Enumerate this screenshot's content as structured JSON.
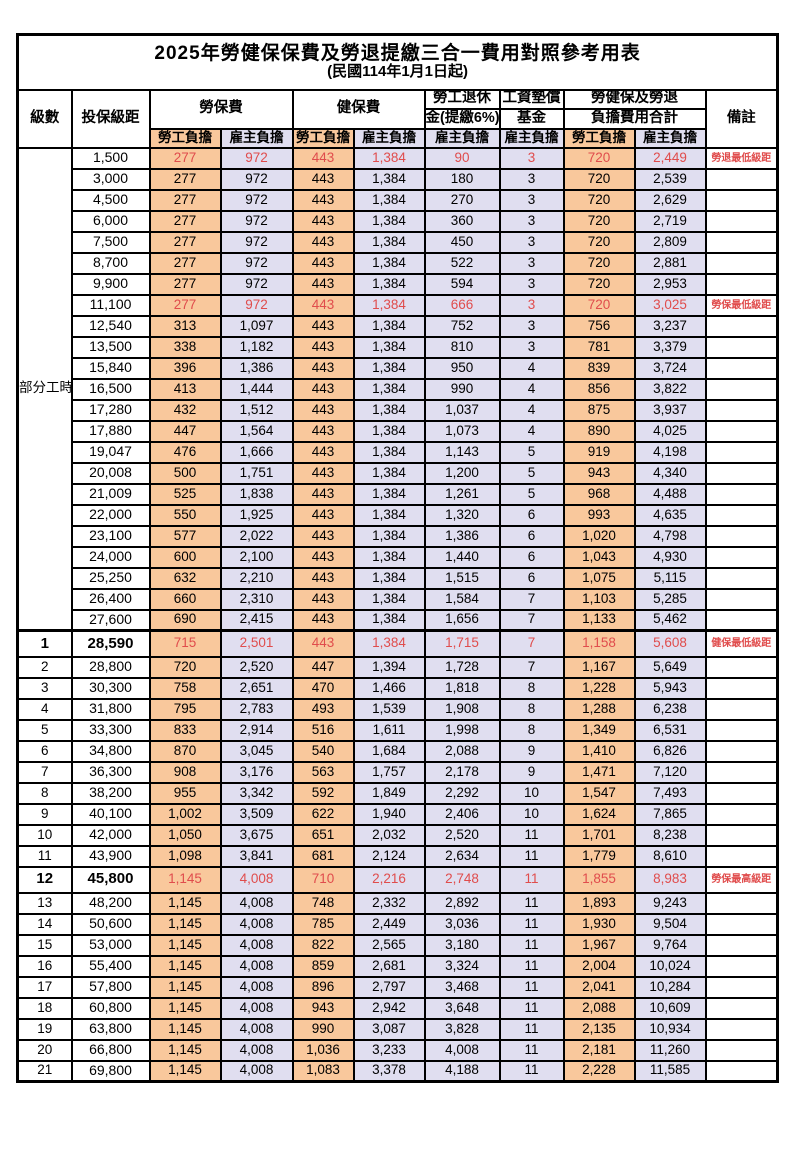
{
  "title": "2025年勞健保保費及勞退提繳三合一費用對照參考用表",
  "subtitle": "(民國114年1月1日起)",
  "colors": {
    "employee_bg": "#F9C89C",
    "employer_bg": "#E0DEF0",
    "highlight_text": "#E04C4C",
    "border": "#000000"
  },
  "header": {
    "level": "級數",
    "bracket": "投保級距",
    "labor_ins": "勞保費",
    "health_ins": "健保費",
    "pension_line1": "勞工退休",
    "pension_line2": "金(提繳6%)",
    "wage_fund_line1": "工資墊償",
    "wage_fund_line2": "基金",
    "total_line1": "勞健保及勞退",
    "total_line2": "負擔費用合計",
    "remark": "備註",
    "employee": "勞工負擔",
    "employer": "雇主負擔"
  },
  "part_time_label": "部分工時",
  "part_time_rowspan": 23,
  "rows": [
    {
      "level": null,
      "bracket": "1,500",
      "li_emp": "277",
      "li_er": "972",
      "hi_emp": "443",
      "hi_er": "1,384",
      "pension": "90",
      "fund": "3",
      "tot_emp": "720",
      "tot_er": "2,449",
      "remark": "勞退最低級距",
      "highlight": true
    },
    {
      "level": null,
      "bracket": "3,000",
      "li_emp": "277",
      "li_er": "972",
      "hi_emp": "443",
      "hi_er": "1,384",
      "pension": "180",
      "fund": "3",
      "tot_emp": "720",
      "tot_er": "2,539"
    },
    {
      "level": null,
      "bracket": "4,500",
      "li_emp": "277",
      "li_er": "972",
      "hi_emp": "443",
      "hi_er": "1,384",
      "pension": "270",
      "fund": "3",
      "tot_emp": "720",
      "tot_er": "2,629"
    },
    {
      "level": null,
      "bracket": "6,000",
      "li_emp": "277",
      "li_er": "972",
      "hi_emp": "443",
      "hi_er": "1,384",
      "pension": "360",
      "fund": "3",
      "tot_emp": "720",
      "tot_er": "2,719"
    },
    {
      "level": null,
      "bracket": "7,500",
      "li_emp": "277",
      "li_er": "972",
      "hi_emp": "443",
      "hi_er": "1,384",
      "pension": "450",
      "fund": "3",
      "tot_emp": "720",
      "tot_er": "2,809"
    },
    {
      "level": null,
      "bracket": "8,700",
      "li_emp": "277",
      "li_er": "972",
      "hi_emp": "443",
      "hi_er": "1,384",
      "pension": "522",
      "fund": "3",
      "tot_emp": "720",
      "tot_er": "2,881"
    },
    {
      "level": null,
      "bracket": "9,900",
      "li_emp": "277",
      "li_er": "972",
      "hi_emp": "443",
      "hi_er": "1,384",
      "pension": "594",
      "fund": "3",
      "tot_emp": "720",
      "tot_er": "2,953"
    },
    {
      "level": null,
      "bracket": "11,100",
      "li_emp": "277",
      "li_er": "972",
      "hi_emp": "443",
      "hi_er": "1,384",
      "pension": "666",
      "fund": "3",
      "tot_emp": "720",
      "tot_er": "3,025",
      "remark": "勞保最低級距",
      "highlight": true
    },
    {
      "level": null,
      "bracket": "12,540",
      "li_emp": "313",
      "li_er": "1,097",
      "hi_emp": "443",
      "hi_er": "1,384",
      "pension": "752",
      "fund": "3",
      "tot_emp": "756",
      "tot_er": "3,237"
    },
    {
      "level": null,
      "bracket": "13,500",
      "li_emp": "338",
      "li_er": "1,182",
      "hi_emp": "443",
      "hi_er": "1,384",
      "pension": "810",
      "fund": "3",
      "tot_emp": "781",
      "tot_er": "3,379"
    },
    {
      "level": null,
      "bracket": "15,840",
      "li_emp": "396",
      "li_er": "1,386",
      "hi_emp": "443",
      "hi_er": "1,384",
      "pension": "950",
      "fund": "4",
      "tot_emp": "839",
      "tot_er": "3,724"
    },
    {
      "level": null,
      "bracket": "16,500",
      "li_emp": "413",
      "li_er": "1,444",
      "hi_emp": "443",
      "hi_er": "1,384",
      "pension": "990",
      "fund": "4",
      "tot_emp": "856",
      "tot_er": "3,822"
    },
    {
      "level": null,
      "bracket": "17,280",
      "li_emp": "432",
      "li_er": "1,512",
      "hi_emp": "443",
      "hi_er": "1,384",
      "pension": "1,037",
      "fund": "4",
      "tot_emp": "875",
      "tot_er": "3,937"
    },
    {
      "level": null,
      "bracket": "17,880",
      "li_emp": "447",
      "li_er": "1,564",
      "hi_emp": "443",
      "hi_er": "1,384",
      "pension": "1,073",
      "fund": "4",
      "tot_emp": "890",
      "tot_er": "4,025"
    },
    {
      "level": null,
      "bracket": "19,047",
      "li_emp": "476",
      "li_er": "1,666",
      "hi_emp": "443",
      "hi_er": "1,384",
      "pension": "1,143",
      "fund": "5",
      "tot_emp": "919",
      "tot_er": "4,198"
    },
    {
      "level": null,
      "bracket": "20,008",
      "li_emp": "500",
      "li_er": "1,751",
      "hi_emp": "443",
      "hi_er": "1,384",
      "pension": "1,200",
      "fund": "5",
      "tot_emp": "943",
      "tot_er": "4,340"
    },
    {
      "level": null,
      "bracket": "21,009",
      "li_emp": "525",
      "li_er": "1,838",
      "hi_emp": "443",
      "hi_er": "1,384",
      "pension": "1,261",
      "fund": "5",
      "tot_emp": "968",
      "tot_er": "4,488"
    },
    {
      "level": null,
      "bracket": "22,000",
      "li_emp": "550",
      "li_er": "1,925",
      "hi_emp": "443",
      "hi_er": "1,384",
      "pension": "1,320",
      "fund": "6",
      "tot_emp": "993",
      "tot_er": "4,635"
    },
    {
      "level": null,
      "bracket": "23,100",
      "li_emp": "577",
      "li_er": "2,022",
      "hi_emp": "443",
      "hi_er": "1,384",
      "pension": "1,386",
      "fund": "6",
      "tot_emp": "1,020",
      "tot_er": "4,798"
    },
    {
      "level": null,
      "bracket": "24,000",
      "li_emp": "600",
      "li_er": "2,100",
      "hi_emp": "443",
      "hi_er": "1,384",
      "pension": "1,440",
      "fund": "6",
      "tot_emp": "1,043",
      "tot_er": "4,930"
    },
    {
      "level": null,
      "bracket": "25,250",
      "li_emp": "632",
      "li_er": "2,210",
      "hi_emp": "443",
      "hi_er": "1,384",
      "pension": "1,515",
      "fund": "6",
      "tot_emp": "1,075",
      "tot_er": "5,115"
    },
    {
      "level": null,
      "bracket": "26,400",
      "li_emp": "660",
      "li_er": "2,310",
      "hi_emp": "443",
      "hi_er": "1,384",
      "pension": "1,584",
      "fund": "7",
      "tot_emp": "1,103",
      "tot_er": "5,285"
    },
    {
      "level": null,
      "bracket": "27,600",
      "li_emp": "690",
      "li_er": "2,415",
      "hi_emp": "443",
      "hi_er": "1,384",
      "pension": "1,656",
      "fund": "7",
      "tot_emp": "1,133",
      "tot_er": "5,462"
    },
    {
      "level": "1",
      "bracket": "28,590",
      "li_emp": "715",
      "li_er": "2,501",
      "hi_emp": "443",
      "hi_er": "1,384",
      "pension": "1,715",
      "fund": "7",
      "tot_emp": "1,158",
      "tot_er": "5,608",
      "remark": "健保最低級距",
      "highlight": true,
      "bold": true,
      "thick_top": true
    },
    {
      "level": "2",
      "bracket": "28,800",
      "li_emp": "720",
      "li_er": "2,520",
      "hi_emp": "447",
      "hi_er": "1,394",
      "pension": "1,728",
      "fund": "7",
      "tot_emp": "1,167",
      "tot_er": "5,649"
    },
    {
      "level": "3",
      "bracket": "30,300",
      "li_emp": "758",
      "li_er": "2,651",
      "hi_emp": "470",
      "hi_er": "1,466",
      "pension": "1,818",
      "fund": "8",
      "tot_emp": "1,228",
      "tot_er": "5,943"
    },
    {
      "level": "4",
      "bracket": "31,800",
      "li_emp": "795",
      "li_er": "2,783",
      "hi_emp": "493",
      "hi_er": "1,539",
      "pension": "1,908",
      "fund": "8",
      "tot_emp": "1,288",
      "tot_er": "6,238"
    },
    {
      "level": "5",
      "bracket": "33,300",
      "li_emp": "833",
      "li_er": "2,914",
      "hi_emp": "516",
      "hi_er": "1,611",
      "pension": "1,998",
      "fund": "8",
      "tot_emp": "1,349",
      "tot_er": "6,531"
    },
    {
      "level": "6",
      "bracket": "34,800",
      "li_emp": "870",
      "li_er": "3,045",
      "hi_emp": "540",
      "hi_er": "1,684",
      "pension": "2,088",
      "fund": "9",
      "tot_emp": "1,410",
      "tot_er": "6,826"
    },
    {
      "level": "7",
      "bracket": "36,300",
      "li_emp": "908",
      "li_er": "3,176",
      "hi_emp": "563",
      "hi_er": "1,757",
      "pension": "2,178",
      "fund": "9",
      "tot_emp": "1,471",
      "tot_er": "7,120"
    },
    {
      "level": "8",
      "bracket": "38,200",
      "li_emp": "955",
      "li_er": "3,342",
      "hi_emp": "592",
      "hi_er": "1,849",
      "pension": "2,292",
      "fund": "10",
      "tot_emp": "1,547",
      "tot_er": "7,493"
    },
    {
      "level": "9",
      "bracket": "40,100",
      "li_emp": "1,002",
      "li_er": "3,509",
      "hi_emp": "622",
      "hi_er": "1,940",
      "pension": "2,406",
      "fund": "10",
      "tot_emp": "1,624",
      "tot_er": "7,865"
    },
    {
      "level": "10",
      "bracket": "42,000",
      "li_emp": "1,050",
      "li_er": "3,675",
      "hi_emp": "651",
      "hi_er": "2,032",
      "pension": "2,520",
      "fund": "11",
      "tot_emp": "1,701",
      "tot_er": "8,238"
    },
    {
      "level": "11",
      "bracket": "43,900",
      "li_emp": "1,098",
      "li_er": "3,841",
      "hi_emp": "681",
      "hi_er": "2,124",
      "pension": "2,634",
      "fund": "11",
      "tot_emp": "1,779",
      "tot_er": "8,610"
    },
    {
      "level": "12",
      "bracket": "45,800",
      "li_emp": "1,145",
      "li_er": "4,008",
      "hi_emp": "710",
      "hi_er": "2,216",
      "pension": "2,748",
      "fund": "11",
      "tot_emp": "1,855",
      "tot_er": "8,983",
      "remark": "勞保最高級距",
      "highlight": true,
      "bold": true
    },
    {
      "level": "13",
      "bracket": "48,200",
      "li_emp": "1,145",
      "li_er": "4,008",
      "hi_emp": "748",
      "hi_er": "2,332",
      "pension": "2,892",
      "fund": "11",
      "tot_emp": "1,893",
      "tot_er": "9,243"
    },
    {
      "level": "14",
      "bracket": "50,600",
      "li_emp": "1,145",
      "li_er": "4,008",
      "hi_emp": "785",
      "hi_er": "2,449",
      "pension": "3,036",
      "fund": "11",
      "tot_emp": "1,930",
      "tot_er": "9,504"
    },
    {
      "level": "15",
      "bracket": "53,000",
      "li_emp": "1,145",
      "li_er": "4,008",
      "hi_emp": "822",
      "hi_er": "2,565",
      "pension": "3,180",
      "fund": "11",
      "tot_emp": "1,967",
      "tot_er": "9,764"
    },
    {
      "level": "16",
      "bracket": "55,400",
      "li_emp": "1,145",
      "li_er": "4,008",
      "hi_emp": "859",
      "hi_er": "2,681",
      "pension": "3,324",
      "fund": "11",
      "tot_emp": "2,004",
      "tot_er": "10,024"
    },
    {
      "level": "17",
      "bracket": "57,800",
      "li_emp": "1,145",
      "li_er": "4,008",
      "hi_emp": "896",
      "hi_er": "2,797",
      "pension": "3,468",
      "fund": "11",
      "tot_emp": "2,041",
      "tot_er": "10,284"
    },
    {
      "level": "18",
      "bracket": "60,800",
      "li_emp": "1,145",
      "li_er": "4,008",
      "hi_emp": "943",
      "hi_er": "2,942",
      "pension": "3,648",
      "fund": "11",
      "tot_emp": "2,088",
      "tot_er": "10,609"
    },
    {
      "level": "19",
      "bracket": "63,800",
      "li_emp": "1,145",
      "li_er": "4,008",
      "hi_emp": "990",
      "hi_er": "3,087",
      "pension": "3,828",
      "fund": "11",
      "tot_emp": "2,135",
      "tot_er": "10,934"
    },
    {
      "level": "20",
      "bracket": "66,800",
      "li_emp": "1,145",
      "li_er": "4,008",
      "hi_emp": "1,036",
      "hi_er": "3,233",
      "pension": "4,008",
      "fund": "11",
      "tot_emp": "2,181",
      "tot_er": "11,260"
    },
    {
      "level": "21",
      "bracket": "69,800",
      "li_emp": "1,145",
      "li_er": "4,008",
      "hi_emp": "1,083",
      "hi_er": "3,378",
      "pension": "4,188",
      "fund": "11",
      "tot_emp": "2,228",
      "tot_er": "11,585"
    }
  ]
}
